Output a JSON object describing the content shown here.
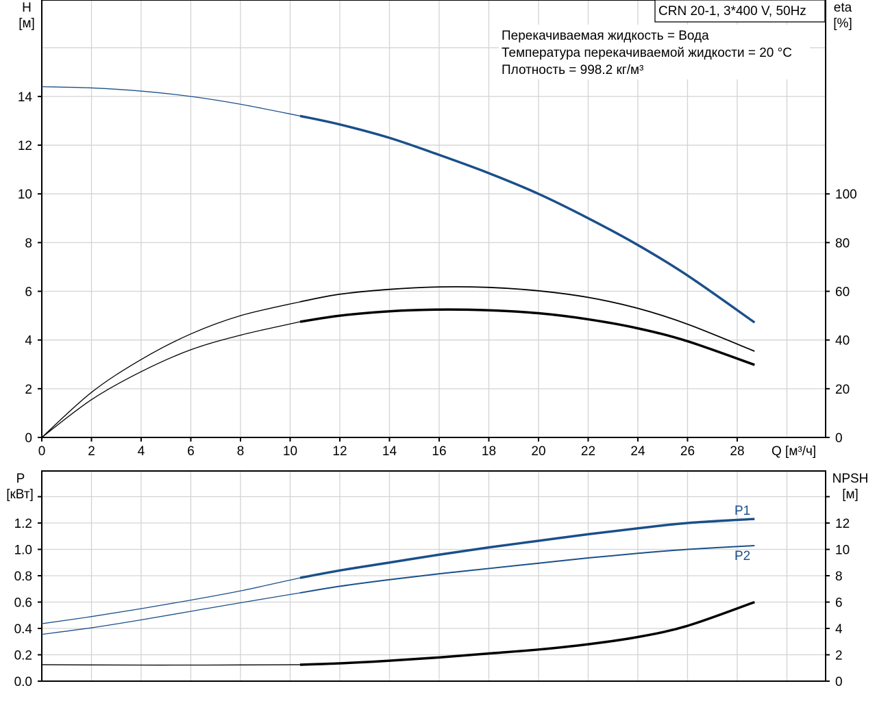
{
  "chart_data": [
    {
      "type": "line",
      "title": "CRN 20-1, 3*400 V, 50Hz",
      "info_lines": [
        "Перекачиваемая жидкость = Вода",
        "Температура перекачиваемой жидкости = 20 °C",
        "Плотность = 998.2 кг/м³"
      ],
      "xlabel": "Q [м³/ч]",
      "ylabel": "H",
      "ylabel_unit": "[м]",
      "y2label": "eta",
      "y2label_unit": "[%]",
      "xlim": [
        0,
        31.56
      ],
      "ylim": [
        0,
        17.96
      ],
      "y2lim": [
        0,
        179.6
      ],
      "xticks": [
        "0",
        "2",
        "4",
        "6",
        "8",
        "10",
        "12",
        "14",
        "16",
        "18",
        "20",
        "22",
        "24",
        "26",
        "28"
      ],
      "yticks": [
        "0",
        "2",
        "4",
        "6",
        "8",
        "10",
        "12",
        "14"
      ],
      "y2ticks": [
        "0",
        "20",
        "40",
        "60",
        "80",
        "100"
      ],
      "grid": true,
      "operating_range_start_q": 10.4,
      "series": [
        {
          "name": "H",
          "axis": "left",
          "color": "#1a4f8a",
          "x": [
            0,
            2,
            4,
            6,
            8,
            10.4,
            12,
            14,
            16,
            18,
            20,
            22,
            24,
            26,
            28.7
          ],
          "y": [
            14.4,
            14.35,
            14.22,
            14.0,
            13.68,
            13.2,
            12.85,
            12.3,
            11.6,
            10.85,
            10.0,
            9.0,
            7.9,
            6.65,
            4.72
          ]
        },
        {
          "name": "eta-upper",
          "axis": "right",
          "color": "#000000",
          "x": [
            0,
            2,
            4,
            6,
            8,
            10.4,
            12,
            14,
            16,
            18,
            20,
            22,
            24,
            26,
            28.7
          ],
          "y": [
            0,
            18.5,
            32,
            42.5,
            50,
            55.7,
            58.8,
            60.8,
            61.8,
            61.6,
            60.2,
            57.5,
            53,
            46.5,
            35.4
          ]
        },
        {
          "name": "eta-lower",
          "axis": "right",
          "color": "#000000",
          "x": [
            0,
            2,
            4,
            6,
            8,
            10.4,
            12,
            14,
            16,
            18,
            20,
            22,
            24,
            26,
            28.7
          ],
          "y": [
            0,
            15.5,
            27,
            36,
            42,
            47.5,
            50,
            51.8,
            52.5,
            52.2,
            51,
            48.5,
            44.8,
            39.5,
            29.8
          ]
        }
      ]
    },
    {
      "type": "line",
      "xlim": [
        0,
        31.56
      ],
      "ylim": [
        0,
        1.595
      ],
      "y2lim": [
        0,
        15.95
      ],
      "ylabel": "P",
      "ylabel_unit": "[кВт]",
      "y2label": "NPSH",
      "y2label_unit": "[м]",
      "yticks": [
        "0.0",
        "0.2",
        "0.4",
        "0.6",
        "0.8",
        "1.0",
        "1.2"
      ],
      "y2ticks": [
        "0",
        "2",
        "4",
        "6",
        "8",
        "10",
        "12"
      ],
      "grid": true,
      "operating_range_start_q": 10.4,
      "series": [
        {
          "name": "P1",
          "axis": "left",
          "color": "#1a4f8a",
          "x": [
            0,
            2,
            4,
            6,
            8,
            10.4,
            12,
            14,
            16,
            18,
            20,
            22,
            24,
            26,
            28.7
          ],
          "y": [
            0.436,
            0.49,
            0.55,
            0.615,
            0.685,
            0.784,
            0.84,
            0.9,
            0.96,
            1.015,
            1.065,
            1.115,
            1.16,
            1.2,
            1.231
          ]
        },
        {
          "name": "P2",
          "axis": "left",
          "color": "#1a4f8a",
          "x": [
            0,
            2,
            4,
            6,
            8,
            10.4,
            12,
            14,
            16,
            18,
            20,
            22,
            24,
            26,
            28.7
          ],
          "y": [
            0.355,
            0.405,
            0.465,
            0.53,
            0.595,
            0.67,
            0.72,
            0.77,
            0.815,
            0.855,
            0.895,
            0.935,
            0.97,
            1.0,
            1.029
          ]
        },
        {
          "name": "NPSH",
          "axis": "right",
          "color": "#000000",
          "x": [
            0,
            2,
            4,
            6,
            8,
            10.4,
            12,
            14,
            16,
            18,
            20,
            22,
            24,
            26,
            28.7
          ],
          "y": [
            1.25,
            1.23,
            1.22,
            1.22,
            1.23,
            1.25,
            1.35,
            1.55,
            1.8,
            2.1,
            2.4,
            2.8,
            3.35,
            4.2,
            6.0
          ]
        }
      ]
    }
  ]
}
